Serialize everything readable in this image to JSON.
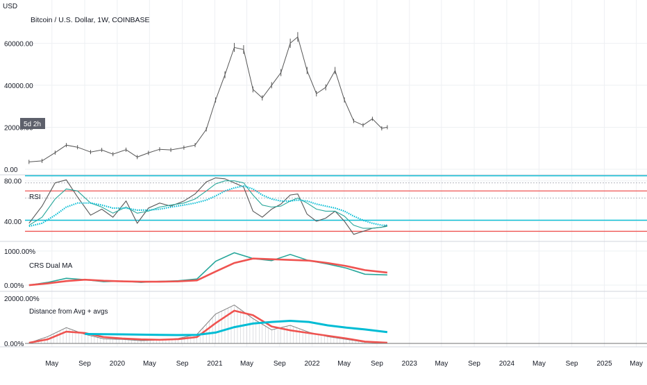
{
  "header": {
    "currency": "USD",
    "title": "Bitcoin / U.S. Dollar, 1W, COINBASE",
    "countdown_badge": "5d 2h"
  },
  "colors": {
    "price": "#555555",
    "rsi_line": "#555555",
    "teal": "#26a69a",
    "cyan": "#00bcd4",
    "red": "#ef5350",
    "grid": "#eef0f3",
    "badge_bg": "#5d606b"
  },
  "chart_data": [
    {
      "type": "line",
      "title": "Bitcoin / U.S. Dollar, 1W, COINBASE",
      "ylabel": "USD",
      "y_ticks": [
        "0.00",
        "20000.00",
        "40000.00",
        "60000.00"
      ],
      "y_tick_values": [
        0,
        20000,
        40000,
        60000
      ],
      "ylim": [
        0,
        72000
      ],
      "x_dates": [
        "2019-02-04",
        "2019-03-25",
        "2019-05-13",
        "2019-06-24",
        "2019-08-05",
        "2019-09-23",
        "2019-11-04",
        "2019-12-16",
        "2020-02-03",
        "2020-03-16",
        "2020-04-27",
        "2020-06-08",
        "2020-07-20",
        "2020-09-07",
        "2020-10-19",
        "2020-11-30",
        "2021-01-04",
        "2021-02-08",
        "2021-03-15",
        "2021-04-19",
        "2021-05-24",
        "2021-06-28",
        "2021-08-02",
        "2021-09-06",
        "2021-10-11",
        "2021-11-08",
        "2021-12-13",
        "2022-01-17",
        "2022-02-21",
        "2022-03-28",
        "2022-05-02",
        "2022-06-06",
        "2022-07-11",
        "2022-08-15",
        "2022-09-19",
        "2022-10-10"
      ],
      "close": [
        3500,
        4000,
        7900,
        11500,
        10500,
        8200,
        9200,
        7200,
        9300,
        5800,
        7800,
        9500,
        9200,
        10300,
        11500,
        19000,
        33000,
        45000,
        58000,
        57000,
        38000,
        34000,
        40000,
        46000,
        60000,
        63000,
        47000,
        36000,
        39000,
        47000,
        33000,
        23000,
        21000,
        24000,
        19500,
        20000
      ]
    },
    {
      "type": "line",
      "title": "RSI",
      "y_ticks": [
        "40.00",
        "80.00"
      ],
      "y_tick_values": [
        40,
        80
      ],
      "ylim": [
        20,
        86
      ],
      "x_dates": [
        "2019-02-04",
        "2019-03-25",
        "2019-05-13",
        "2019-06-24",
        "2019-08-05",
        "2019-09-23",
        "2019-11-04",
        "2019-12-16",
        "2020-02-03",
        "2020-03-16",
        "2020-04-27",
        "2020-06-08",
        "2020-07-20",
        "2020-09-07",
        "2020-10-19",
        "2020-11-30",
        "2021-01-04",
        "2021-02-08",
        "2021-03-15",
        "2021-04-19",
        "2021-05-24",
        "2021-06-28",
        "2021-08-02",
        "2021-09-06",
        "2021-10-11",
        "2021-11-08",
        "2021-12-13",
        "2022-01-17",
        "2022-02-21",
        "2022-03-28",
        "2022-05-02",
        "2022-06-06",
        "2022-07-11",
        "2022-08-15",
        "2022-09-19",
        "2022-10-10"
      ],
      "series": [
        {
          "values": [
            38,
            55,
            78,
            81,
            64,
            46,
            52,
            44,
            60,
            38,
            53,
            58,
            55,
            60,
            67,
            79,
            83,
            82,
            78,
            74,
            50,
            44,
            52,
            57,
            66,
            67,
            47,
            40,
            43,
            50,
            40,
            27,
            30,
            33,
            34,
            36
          ]
        },
        {
          "values": [
            36,
            44,
            62,
            72,
            70,
            58,
            54,
            48,
            54,
            48,
            50,
            54,
            56,
            58,
            62,
            70,
            77,
            80,
            80,
            78,
            66,
            56,
            54,
            55,
            60,
            63,
            58,
            52,
            50,
            50,
            45,
            36,
            33,
            33,
            34,
            35
          ]
        },
        {
          "values": [
            35,
            38,
            46,
            54,
            58,
            58,
            56,
            53,
            53,
            51,
            51,
            52,
            54,
            56,
            58,
            61,
            65,
            70,
            73,
            75,
            72,
            66,
            62,
            60,
            60,
            61,
            60,
            57,
            55,
            53,
            50,
            45,
            41,
            38,
            36,
            36
          ]
        }
      ],
      "levels": [
        {
          "value": 85,
          "color": "cyan"
        },
        {
          "value": 70,
          "color": "red"
        },
        {
          "value": 41,
          "color": "cyan"
        },
        {
          "value": 30,
          "color": "red"
        },
        {
          "value": 78,
          "color": "grey"
        },
        {
          "value": 63,
          "color": "grey"
        }
      ]
    },
    {
      "type": "line",
      "title": "CRS Dual MA",
      "y_ticks": [
        "0.00%",
        "1000.00%"
      ],
      "y_tick_values": [
        0,
        1000
      ],
      "ylim": [
        -60,
        1080
      ],
      "x_dates": [
        "2019-02-04",
        "2019-04-15",
        "2019-06-24",
        "2019-09-02",
        "2019-11-11",
        "2020-01-20",
        "2020-03-30",
        "2020-06-08",
        "2020-08-17",
        "2020-10-26",
        "2021-01-04",
        "2021-03-15",
        "2021-05-24",
        "2021-08-02",
        "2021-10-11",
        "2021-12-20",
        "2022-02-28",
        "2022-05-09",
        "2022-07-18",
        "2022-10-10"
      ],
      "series": [
        {
          "values": [
            0,
            80,
            200,
            160,
            100,
            120,
            80,
            110,
            130,
            180,
            700,
            950,
            780,
            720,
            900,
            720,
            620,
            500,
            320,
            300
          ]
        },
        {
          "values": [
            0,
            50,
            120,
            160,
            130,
            110,
            100,
            100,
            110,
            140,
            400,
            650,
            780,
            760,
            740,
            720,
            650,
            560,
            440,
            370
          ]
        }
      ]
    },
    {
      "type": "line",
      "title": "Distance from Avg + avgs",
      "y_ticks": [
        "0.00%",
        "20000.00%"
      ],
      "y_tick_values": [
        0,
        20000
      ],
      "ylim": [
        -600,
        20600
      ],
      "x_dates": [
        "2019-02-04",
        "2019-04-15",
        "2019-06-24",
        "2019-09-02",
        "2019-11-11",
        "2020-01-20",
        "2020-03-30",
        "2020-06-08",
        "2020-08-17",
        "2020-10-26",
        "2021-01-04",
        "2021-03-15",
        "2021-05-24",
        "2021-08-02",
        "2021-10-11",
        "2021-12-20",
        "2022-02-28",
        "2022-05-09",
        "2022-07-18",
        "2022-10-10"
      ],
      "series": [
        {
          "values": [
            200,
            3000,
            7000,
            4000,
            2000,
            1800,
            1200,
            1500,
            2200,
            4000,
            13000,
            17000,
            11000,
            6000,
            8000,
            5000,
            3000,
            1800,
            500,
            200
          ]
        },
        {
          "values": [
            300,
            1800,
            5200,
            4600,
            2800,
            2200,
            1800,
            1600,
            1900,
            2800,
            9000,
            14500,
            12500,
            7500,
            5800,
            4600,
            3400,
            2200,
            800,
            300
          ]
        },
        {
          "values": [
            null,
            null,
            null,
            4200,
            4100,
            4000,
            3900,
            3800,
            3700,
            3800,
            4800,
            7200,
            8800,
            9500,
            10000,
            9500,
            8000,
            7000,
            6200,
            5000
          ]
        }
      ]
    }
  ],
  "time_axis": {
    "labels": [
      "May",
      "Sep",
      "2020",
      "May",
      "Sep",
      "2021",
      "May",
      "Sep",
      "2022",
      "May",
      "Sep",
      "2023",
      "May",
      "Sep",
      "2024",
      "May",
      "Sep",
      "2025",
      "May"
    ],
    "dates": [
      "2019-05-01",
      "2019-09-01",
      "2020-01-01",
      "2020-05-01",
      "2020-09-01",
      "2021-01-01",
      "2021-05-01",
      "2021-09-01",
      "2022-01-01",
      "2022-05-01",
      "2022-09-01",
      "2023-01-01",
      "2023-05-01",
      "2023-09-01",
      "2024-01-01",
      "2024-05-01",
      "2024-09-01",
      "2025-01-01",
      "2025-05-01"
    ]
  }
}
